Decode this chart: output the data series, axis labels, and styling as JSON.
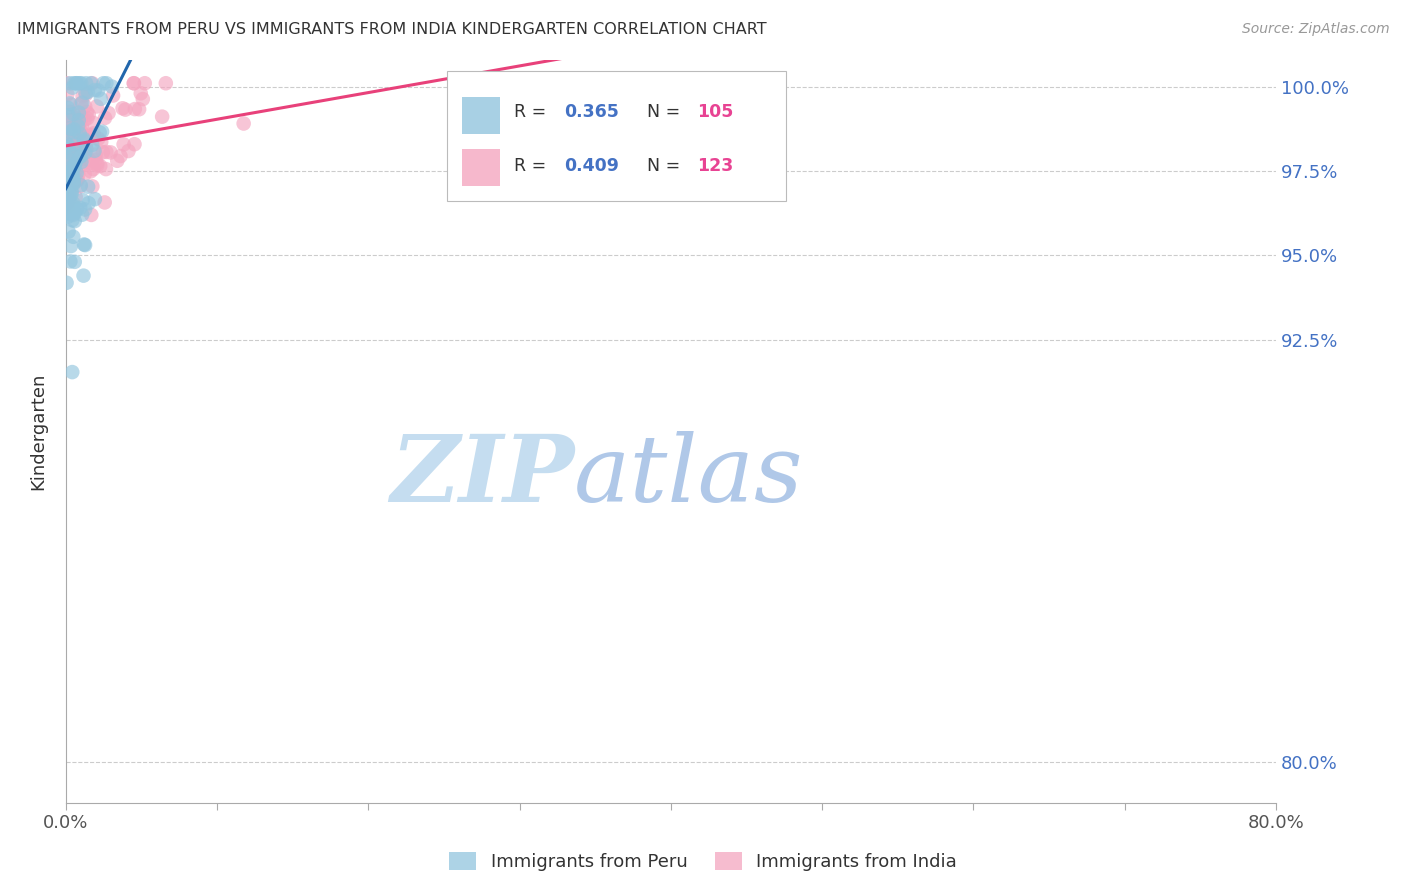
{
  "title": "IMMIGRANTS FROM PERU VS IMMIGRANTS FROM INDIA KINDERGARTEN CORRELATION CHART",
  "source": "Source: ZipAtlas.com",
  "ylabel": "Kindergarten",
  "xlim": [
    0.0,
    0.8
  ],
  "ylim": [
    0.788,
    1.008
  ],
  "ytick_values": [
    1.0,
    0.975,
    0.95,
    0.925,
    0.8
  ],
  "ytick_labels": [
    "100.0%",
    "97.5%",
    "95.0%",
    "92.5%",
    "80.0%"
  ],
  "xtick_values": [
    0.0,
    0.1,
    0.2,
    0.3,
    0.4,
    0.5,
    0.6,
    0.7,
    0.8
  ],
  "legend_peru_R": "0.365",
  "legend_peru_N": "105",
  "legend_india_R": "0.409",
  "legend_india_N": "123",
  "color_peru": "#92c5de",
  "color_india": "#f4a6c0",
  "trendline_peru_color": "#2166ac",
  "trendline_india_color": "#e8417a",
  "watermark_color": "#d6e8f7",
  "background_color": "#ffffff",
  "grid_color": "#cccccc",
  "legend_text_color": "#333333",
  "legend_R_color": "#4472c4",
  "legend_N_color": "#e84393"
}
